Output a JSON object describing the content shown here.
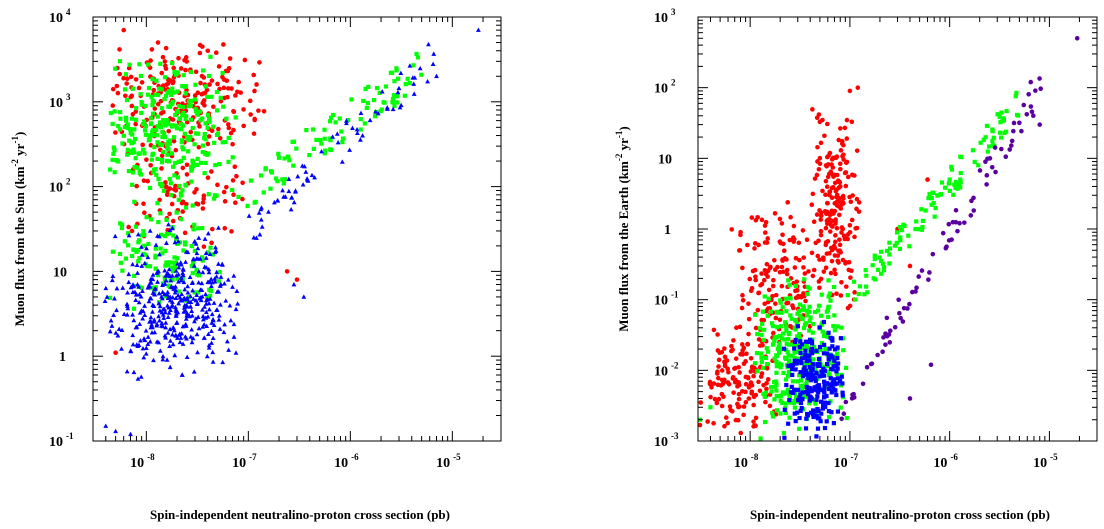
{
  "chart_data": [
    {
      "type": "scatter",
      "title": "",
      "xlabel": "Spin-independent neutralino-proton cross section (pb)",
      "ylabel_main": "Muon flux from the Sun (km",
      "ylabel_sup1": "-2",
      "ylabel_mid": " yr",
      "ylabel_sup2": "-1",
      "ylabel_end": ")",
      "xscale": "log",
      "yscale": "log",
      "xlim": [
        3e-09,
        3e-05
      ],
      "ylim": [
        0.1,
        10000
      ],
      "xticks": [
        {
          "value": 1e-08,
          "base": "10",
          "exp": "-8"
        },
        {
          "value": 1e-07,
          "base": "10",
          "exp": "-7"
        },
        {
          "value": 1e-06,
          "base": "10",
          "exp": "-6"
        },
        {
          "value": 1e-05,
          "base": "10",
          "exp": "-5"
        }
      ],
      "yticks": [
        {
          "value": 0.1,
          "base": "10",
          "exp": "-1"
        },
        {
          "value": 1,
          "base": "1",
          "exp": ""
        },
        {
          "value": 10,
          "base": "10",
          "exp": ""
        },
        {
          "value": 100,
          "base": "10",
          "exp": "2"
        },
        {
          "value": 1000,
          "base": "10",
          "exp": "3"
        },
        {
          "value": 10000,
          "base": "10",
          "exp": "4"
        }
      ],
      "series": [
        {
          "color": "#ff0000",
          "marker": "circle",
          "clouds": [
            {
              "x": [
                3.5e-09,
                1.6e-07
              ],
              "y": [
                200,
                6000
              ],
              "n": 220
            },
            {
              "x": [
                4e-09,
                1.2e-07
              ],
              "y": [
                15,
                300
              ],
              "n": 80
            }
          ],
          "points": [
            [
              6e-09,
              7000
            ],
            [
              1.3e-08,
              5000
            ],
            [
              4e-08,
              4000
            ],
            [
              2.4e-07,
              10
            ],
            [
              3e-07,
              8
            ],
            [
              5e-09,
              1.1
            ]
          ]
        },
        {
          "color": "#00ff00",
          "marker": "square",
          "clouds": [
            {
              "x": [
                3.5e-09,
                8e-08
              ],
              "y": [
                50,
                4000
              ],
              "n": 300
            },
            {
              "x": [
                4e-09,
                6e-08
              ],
              "y": [
                3,
                60
              ],
              "n": 120
            }
          ],
          "band": {
            "x": [
              6e-08,
              5e-06
            ],
            "y": [
              60,
              2500
            ],
            "n": 90
          },
          "points": [
            [
              1.5e-06,
              1500
            ],
            [
              2.5e-06,
              2200
            ]
          ]
        },
        {
          "color": "#0000ff",
          "marker": "triangle",
          "clouds": [
            {
              "x": [
                3.5e-09,
                1e-07
              ],
              "y": [
                0.5,
                40
              ],
              "n": 420
            }
          ],
          "band": {
            "x": [
              1e-07,
              7e-06
            ],
            "y": [
              30,
              3500
            ],
            "n": 70
          },
          "points": [
            [
              4e-09,
              0.15
            ],
            [
              5e-09,
              0.13
            ],
            [
              7e-09,
              0.12
            ],
            [
              1.8e-05,
              7000
            ],
            [
              7e-06,
              2000
            ],
            [
              3.5e-07,
              5
            ],
            [
              2.8e-07,
              7
            ]
          ]
        }
      ]
    },
    {
      "type": "scatter",
      "title": "",
      "xlabel": "Spin-independent neutralino-proton cross section (pb)",
      "ylabel_main": "Muon flux from the Earth (km",
      "ylabel_sup1": "-2",
      "ylabel_mid": " yr",
      "ylabel_sup2": "-1",
      "ylabel_end": ")",
      "xscale": "log",
      "yscale": "log",
      "xlim": [
        3e-09,
        3e-05
      ],
      "ylim": [
        0.001,
        1000
      ],
      "xticks": [
        {
          "value": 1e-08,
          "base": "10",
          "exp": "-8"
        },
        {
          "value": 1e-07,
          "base": "10",
          "exp": "-7"
        },
        {
          "value": 1e-06,
          "base": "10",
          "exp": "-6"
        },
        {
          "value": 1e-05,
          "base": "10",
          "exp": "-5"
        }
      ],
      "yticks": [
        {
          "value": 0.001,
          "base": "10",
          "exp": "-3"
        },
        {
          "value": 0.01,
          "base": "10",
          "exp": "-2"
        },
        {
          "value": 0.1,
          "base": "10",
          "exp": "-1"
        },
        {
          "value": 1,
          "base": "1",
          "exp": ""
        },
        {
          "value": 10,
          "base": "10",
          "exp": ""
        },
        {
          "value": 100,
          "base": "10",
          "exp": "2"
        },
        {
          "value": 1000,
          "base": "10",
          "exp": "3"
        }
      ],
      "series": [
        {
          "color": "#ff0000",
          "marker": "circle",
          "clouds": [
            {
              "x": [
                3e-09,
                2e-08
              ],
              "y": [
                0.001,
                0.05
              ],
              "n": 140
            },
            {
              "x": [
                6e-09,
                6e-08
              ],
              "y": [
                0.01,
                3
              ],
              "n": 160
            },
            {
              "x": [
                4e-08,
                1.3e-07
              ],
              "y": [
                0.05,
                70
              ],
              "n": 200
            }
          ],
          "points": [
            [
              1.2e-07,
              100
            ],
            [
              1e-07,
              90
            ],
            [
              3e-07,
              1
            ],
            [
              4e-07,
              0.3
            ],
            [
              6e-07,
              5
            ]
          ]
        },
        {
          "color": "#00ff00",
          "marker": "square",
          "clouds": [
            {
              "x": [
                1e-08,
                1e-07
              ],
              "y": [
                0.001,
                0.3
              ],
              "n": 320
            }
          ],
          "band": {
            "x": [
              1e-07,
              5e-06
            ],
            "y": [
              0.1,
              60
            ],
            "n": 110
          },
          "points": [
            [
              4e-09,
              0.003
            ],
            [
              3e-09,
              0.002
            ]
          ]
        },
        {
          "color": "#0000ff",
          "marker": "square",
          "clouds": [
            {
              "x": [
                2e-08,
                1e-07
              ],
              "y": [
                0.001,
                0.05
              ],
              "n": 220
            }
          ],
          "points": []
        },
        {
          "color": "#5a00a0",
          "marker": "circle",
          "clouds": [],
          "band": {
            "x": [
              8e-08,
              9e-06
            ],
            "y": [
              0.003,
              120
            ],
            "n": 80
          },
          "points": [
            [
              1.9e-05,
              500
            ],
            [
              6.5e-06,
              120
            ],
            [
              8e-06,
              30
            ],
            [
              6.5e-07,
              0.012
            ],
            [
              4e-07,
              0.004
            ]
          ]
        }
      ]
    }
  ]
}
